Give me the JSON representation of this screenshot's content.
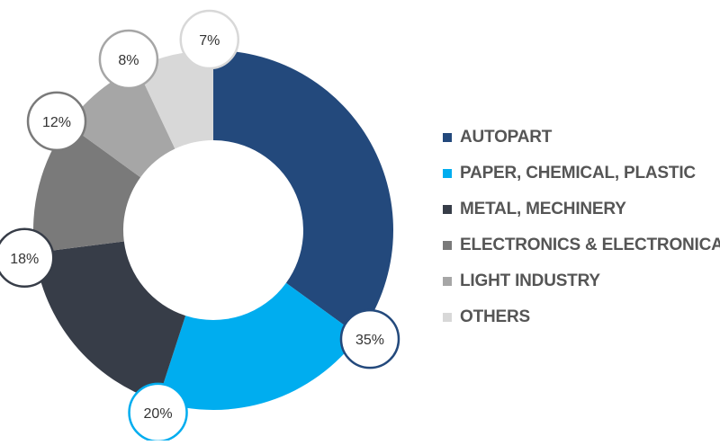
{
  "chart_data": {
    "type": "pie",
    "variant": "donut",
    "categories": [
      "AUTOPART",
      "PAPER, CHEMICAL, PLASTIC",
      "METAL, MECHINERY",
      "ELECTRONICS & ELECTRONICAL",
      "LIGHT INDUSTRY",
      "OTHERS"
    ],
    "values": [
      35,
      20,
      18,
      12,
      8,
      7
    ],
    "labels": [
      "35%",
      "20%",
      "18%",
      "12%",
      "8%",
      "7%"
    ],
    "colors": [
      "#23497C",
      "#00ADEF",
      "#373D48",
      "#7A7A7A",
      "#A6A6A6",
      "#D8D8D8"
    ],
    "label_border_colors": [
      "#23497C",
      "#00ADEF",
      "#373D48",
      "#7A7A7A",
      "#A6A6A6",
      "#D8D8D8"
    ],
    "legend_position": "right"
  }
}
